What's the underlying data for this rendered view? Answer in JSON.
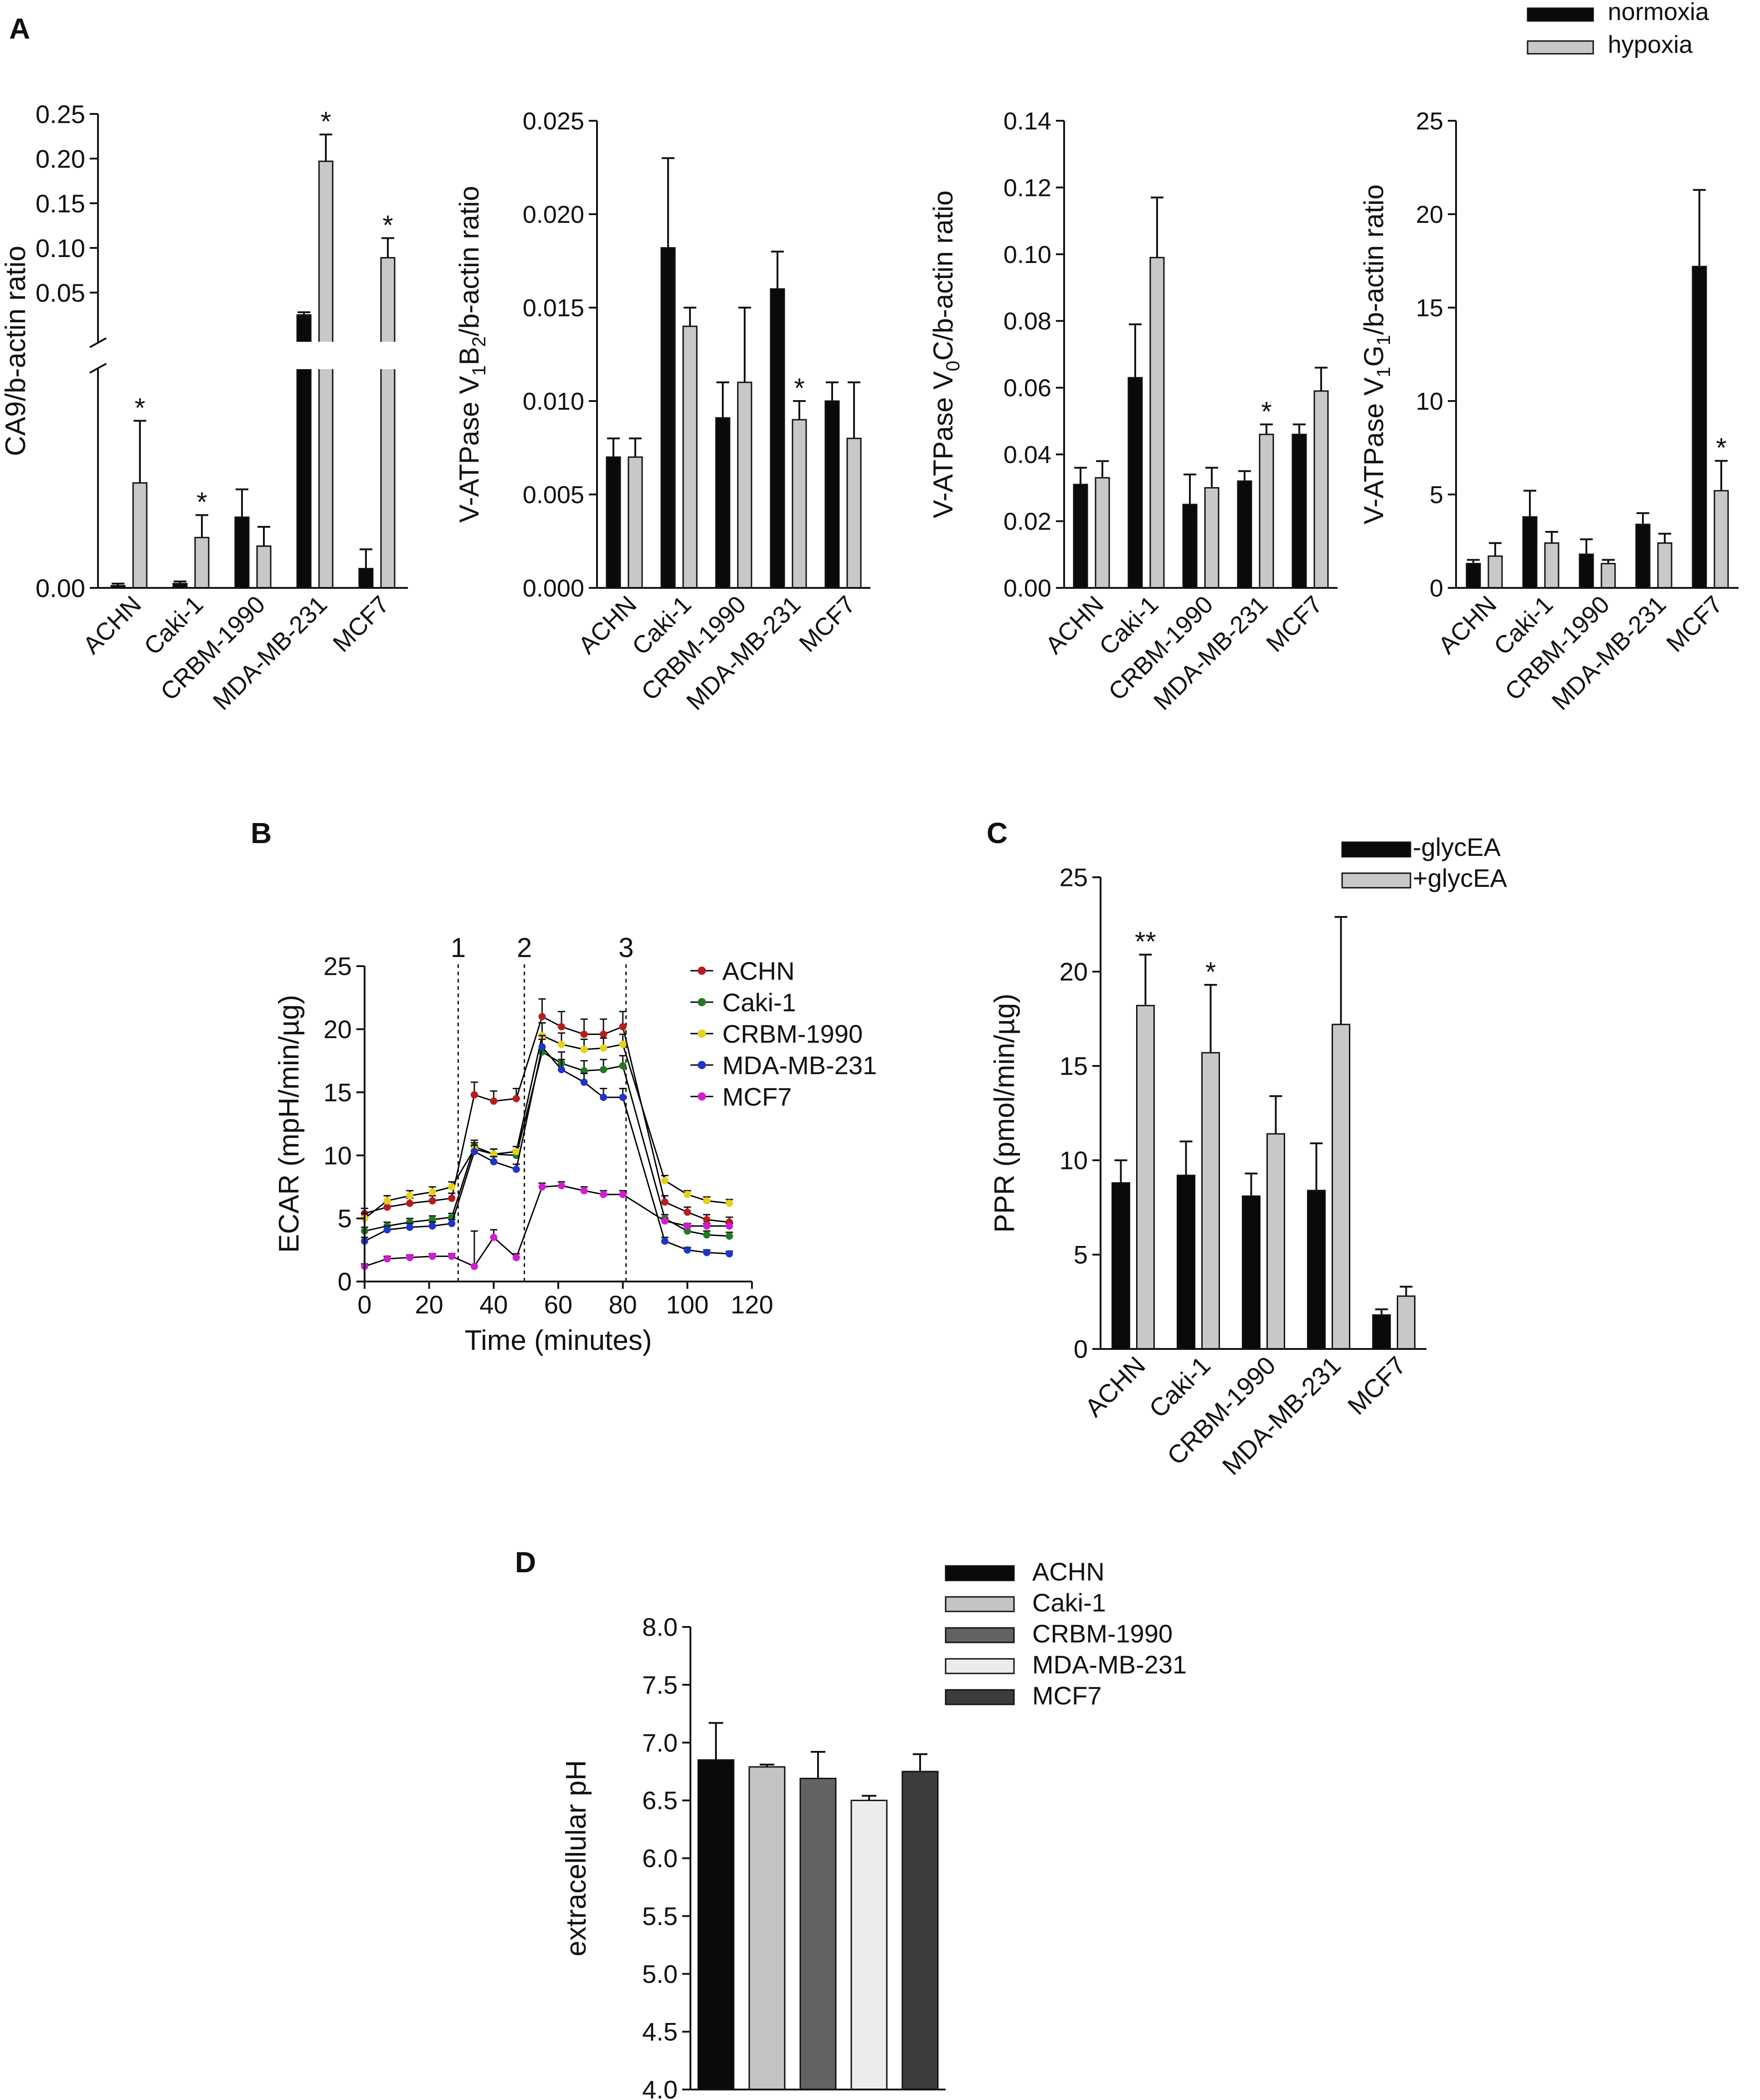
{
  "panel_labels": {
    "a": "A",
    "b": "B",
    "c": "C",
    "d": "D"
  },
  "colors": {
    "black": "#0a0a0a",
    "gray": "#c8c8c8",
    "axis": "#111111"
  },
  "icons": {
    "significance": "asterisk"
  },
  "chart_data": [
    {
      "id": "A1",
      "type": "bar",
      "ylabel": "CA9/b-actin ratio",
      "categories": [
        "ACHN",
        "Caki-1",
        "CRBM-1990",
        "MDA-MB-231",
        "MCF7"
      ],
      "legend": [
        "normoxia",
        "hypoxia"
      ],
      "axis_break": true,
      "upper_range": [
        0.0,
        0.25
      ],
      "upper_ticks": [
        "0.05",
        "0.10",
        "0.15",
        "0.20",
        "0.25"
      ],
      "upper_tick_values": [
        0.05,
        0.1,
        0.15,
        0.2,
        0.25
      ],
      "lower_range": [
        0.0,
        0.02
      ],
      "lower_ticks": [
        "0.00"
      ],
      "lower_tick_values": [
        0.0
      ],
      "series": [
        {
          "name": "normoxia",
          "values": [
            0.0002,
            0.0004,
            0.0066,
            0.025,
            0.0018
          ],
          "errors": [
            0.0002,
            0.0002,
            0.0026,
            0.003,
            0.0018
          ],
          "upper": [
            false,
            false,
            false,
            true,
            false
          ]
        },
        {
          "name": "hypoxia",
          "values": [
            0.0098,
            0.0047,
            0.0039,
            0.197,
            0.089
          ],
          "errors": [
            0.0058,
            0.0021,
            0.0018,
            0.03,
            0.022
          ],
          "upper": [
            false,
            false,
            false,
            true,
            true
          ],
          "stars": [
            "*",
            "*",
            "",
            "*",
            "*"
          ]
        }
      ]
    },
    {
      "id": "A2",
      "type": "bar",
      "ylabel": "V-ATPase V1B2/b-actin ratio",
      "ylabel_parts": [
        "V-ATPase V",
        "1",
        "B",
        "2",
        "/b-actin ratio"
      ],
      "categories": [
        "ACHN",
        "Caki-1",
        "CRBM-1990",
        "MDA-MB-231",
        "MCF7"
      ],
      "ylim": [
        0,
        0.025
      ],
      "yticks": [
        "0.000",
        "0.005",
        "0.010",
        "0.015",
        "0.020",
        "0.025"
      ],
      "ytick_values": [
        0,
        0.005,
        0.01,
        0.015,
        0.02,
        0.025
      ],
      "series": [
        {
          "name": "normoxia",
          "values": [
            0.007,
            0.0182,
            0.0091,
            0.016,
            0.01
          ],
          "errors": [
            0.001,
            0.0048,
            0.0019,
            0.002,
            0.001
          ]
        },
        {
          "name": "hypoxia",
          "values": [
            0.007,
            0.014,
            0.011,
            0.009,
            0.008
          ],
          "errors": [
            0.001,
            0.001,
            0.004,
            0.001,
            0.003
          ],
          "stars": [
            "",
            "",
            "",
            "*",
            ""
          ]
        }
      ]
    },
    {
      "id": "A3",
      "type": "bar",
      "ylabel": "V-ATPase V0C/b-actin ratio",
      "ylabel_parts": [
        "V-ATPase V",
        "0",
        "C/b-actin ratio"
      ],
      "categories": [
        "ACHN",
        "Caki-1",
        "CRBM-1990",
        "MDA-MB-231",
        "MCF7"
      ],
      "ylim": [
        0,
        0.14
      ],
      "yticks": [
        "0.00",
        "0.02",
        "0.04",
        "0.06",
        "0.08",
        "0.10",
        "0.12",
        "0.14"
      ],
      "ytick_values": [
        0,
        0.02,
        0.04,
        0.06,
        0.08,
        0.1,
        0.12,
        0.14
      ],
      "series": [
        {
          "name": "normoxia",
          "values": [
            0.031,
            0.063,
            0.025,
            0.032,
            0.046
          ],
          "errors": [
            0.005,
            0.016,
            0.009,
            0.003,
            0.003
          ]
        },
        {
          "name": "hypoxia",
          "values": [
            0.033,
            0.099,
            0.03,
            0.046,
            0.059
          ],
          "errors": [
            0.005,
            0.018,
            0.006,
            0.003,
            0.007
          ],
          "stars": [
            "",
            "",
            "",
            "*",
            ""
          ]
        }
      ]
    },
    {
      "id": "A4",
      "type": "bar",
      "ylabel": "V-ATPase V1G1/b-actin ratio",
      "ylabel_parts": [
        "V-ATPase V",
        "1",
        "G",
        "1",
        "/b-actin ratio"
      ],
      "categories": [
        "ACHN",
        "Caki-1",
        "CRBM-1990",
        "MDA-MB-231",
        "MCF7"
      ],
      "ylim": [
        0,
        25
      ],
      "yticks": [
        "0",
        "5",
        "10",
        "15",
        "20",
        "25"
      ],
      "ytick_values": [
        0,
        5,
        10,
        15,
        20,
        25
      ],
      "series": [
        {
          "name": "normoxia",
          "values": [
            1.3,
            3.8,
            1.8,
            3.4,
            17.2
          ],
          "errors": [
            0.2,
            1.4,
            0.8,
            0.6,
            4.1
          ]
        },
        {
          "name": "hypoxia",
          "values": [
            1.7,
            2.4,
            1.3,
            2.4,
            5.2
          ],
          "errors": [
            0.7,
            0.6,
            0.2,
            0.5,
            1.6
          ],
          "stars": [
            "",
            "",
            "",
            "",
            "*"
          ]
        }
      ]
    },
    {
      "id": "B",
      "type": "line",
      "xlabel": "Time (minutes)",
      "ylabel": "ECAR (mpH/min/µg)",
      "xlim": [
        0,
        120
      ],
      "ylim": [
        0,
        25
      ],
      "xticks": [
        "0",
        "20",
        "40",
        "60",
        "80",
        "100",
        "120"
      ],
      "xtick_values": [
        0,
        20,
        40,
        60,
        80,
        100,
        120
      ],
      "yticks": [
        "0",
        "5",
        "10",
        "15",
        "20",
        "25"
      ],
      "ytick_values": [
        0,
        5,
        10,
        15,
        20,
        25
      ],
      "markers": [
        {
          "label": "1",
          "x": 29
        },
        {
          "label": "2",
          "x": 49.5
        },
        {
          "label": "3",
          "x": 81
        }
      ],
      "x": [
        0,
        7,
        14,
        21,
        27,
        34,
        40,
        47,
        55,
        61,
        68,
        74,
        80,
        93,
        100,
        106,
        113
      ],
      "series": [
        {
          "name": "ACHN",
          "color": "#b81c1c",
          "values": [
            5.4,
            5.9,
            6.2,
            6.4,
            6.6,
            14.8,
            14.3,
            14.5,
            21.0,
            20.2,
            19.6,
            19.6,
            20.2,
            6.3,
            5.5,
            4.9,
            4.7
          ],
          "errors": [
            0.4,
            0.4,
            0.4,
            0.4,
            0.4,
            1.0,
            0.8,
            0.8,
            1.4,
            1.2,
            1.2,
            1.2,
            1.2,
            0.5,
            0.4,
            0.4,
            0.4
          ]
        },
        {
          "name": "Caki-1",
          "color": "#217a21",
          "values": [
            4.0,
            4.4,
            4.7,
            4.9,
            5.1,
            10.7,
            10.1,
            10.0,
            18.2,
            17.3,
            16.7,
            16.8,
            17.1,
            5.0,
            4.0,
            3.7,
            3.6
          ],
          "errors": [
            0.3,
            0.3,
            0.3,
            0.3,
            0.3,
            0.5,
            0.4,
            0.4,
            1.0,
            0.9,
            0.8,
            0.8,
            0.8,
            0.3,
            0.3,
            0.3,
            0.3
          ]
        },
        {
          "name": "CRBM-1990",
          "color": "#e6d117",
          "values": [
            5.0,
            6.4,
            6.8,
            7.1,
            7.5,
            10.5,
            10.1,
            10.3,
            19.5,
            18.8,
            18.4,
            18.5,
            18.8,
            8.0,
            6.9,
            6.4,
            6.2
          ],
          "errors": [
            0.4,
            0.4,
            0.4,
            0.4,
            0.4,
            0.5,
            0.4,
            0.4,
            1.0,
            0.9,
            0.8,
            0.8,
            0.8,
            0.4,
            0.3,
            0.3,
            0.3
          ]
        },
        {
          "name": "MDA-MB-231",
          "color": "#1f35c8",
          "values": [
            3.2,
            4.1,
            4.3,
            4.4,
            4.6,
            10.3,
            9.5,
            8.9,
            18.6,
            16.8,
            15.8,
            14.6,
            14.6,
            3.2,
            2.5,
            2.3,
            2.2
          ],
          "errors": [
            0.3,
            0.3,
            0.3,
            0.3,
            0.3,
            0.5,
            0.4,
            0.4,
            0.9,
            0.8,
            0.7,
            0.7,
            0.7,
            0.3,
            0.2,
            0.2,
            0.2
          ]
        },
        {
          "name": "MCF7",
          "color": "#d11dcf",
          "values": [
            1.2,
            1.8,
            1.9,
            2.0,
            2.0,
            1.2,
            3.5,
            1.9,
            7.5,
            7.6,
            7.2,
            6.9,
            6.9,
            4.8,
            4.4,
            4.4,
            4.4
          ],
          "errors": [
            0.2,
            0.2,
            0.2,
            0.2,
            0.2,
            2.8,
            0.6,
            0.3,
            0.3,
            0.3,
            0.3,
            0.3,
            0.3,
            0.2,
            0.2,
            0.2,
            0.2
          ]
        }
      ]
    },
    {
      "id": "C",
      "type": "bar",
      "ylabel": "PPR (pmol/min/µg)",
      "categories": [
        "ACHN",
        "Caki-1",
        "CRBM-1990",
        "MDA-MB-231",
        "MCF7"
      ],
      "legend": [
        "-glycEA",
        "+glycEA"
      ],
      "ylim": [
        0,
        25
      ],
      "yticks": [
        "0",
        "5",
        "10",
        "15",
        "20",
        "25"
      ],
      "ytick_values": [
        0,
        5,
        10,
        15,
        20,
        25
      ],
      "series": [
        {
          "name": "-glycEA",
          "values": [
            8.8,
            9.2,
            8.1,
            8.4,
            1.8
          ],
          "errors": [
            1.2,
            1.8,
            1.2,
            2.5,
            0.3
          ]
        },
        {
          "name": "+glycEA",
          "values": [
            18.2,
            15.7,
            11.4,
            17.2,
            2.8
          ],
          "errors": [
            2.7,
            3.6,
            2.0,
            5.7,
            0.5
          ],
          "stars": [
            "**",
            "*",
            "",
            "",
            ""
          ]
        }
      ]
    },
    {
      "id": "D",
      "type": "bar",
      "ylabel": "extracellular pH",
      "categories": [
        "ACHN",
        "Caki-1",
        "CRBM-1990",
        "MDA-MB-231",
        "MCF7"
      ],
      "ylim": [
        4.0,
        8.0
      ],
      "yticks": [
        "4.0",
        "4.5",
        "5.0",
        "5.5",
        "6.0",
        "6.5",
        "7.0",
        "7.5",
        "8.0"
      ],
      "ytick_values": [
        4.0,
        4.5,
        5.0,
        5.5,
        6.0,
        6.5,
        7.0,
        7.5,
        8.0
      ],
      "values": [
        6.85,
        6.79,
        6.69,
        6.5,
        6.75
      ],
      "errors": [
        0.32,
        0.02,
        0.23,
        0.04,
        0.15
      ],
      "colors": [
        "#0a0a0a",
        "#c4c4c4",
        "#636363",
        "#ececec",
        "#3c3c3c"
      ],
      "legend": [
        "ACHN",
        "Caki-1",
        "CRBM-1990",
        "MDA-MB-231",
        "MCF7"
      ]
    }
  ]
}
